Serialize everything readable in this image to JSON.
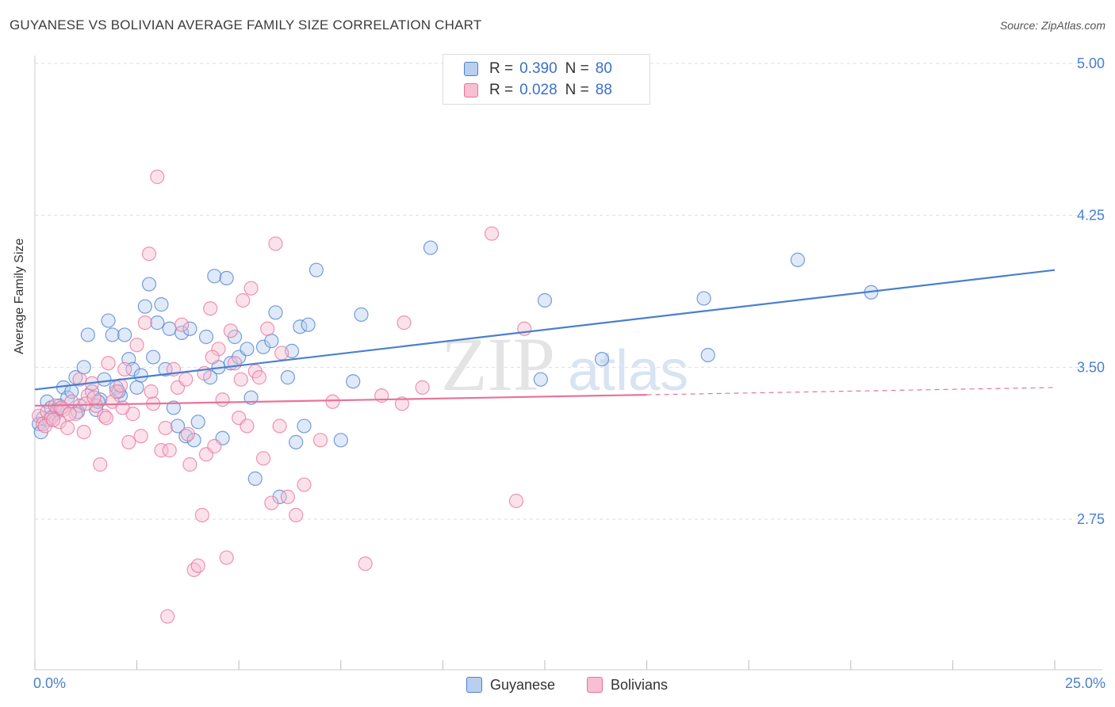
{
  "title": "GUYANESE VS BOLIVIAN AVERAGE FAMILY SIZE CORRELATION CHART",
  "source": "Source: ZipAtlas.com",
  "watermark": {
    "zip": "ZIP",
    "atlas": "atlas"
  },
  "colors": {
    "blue": "#4a7fd0",
    "blue_fill": "#b9cff0",
    "pink": "#e8739b",
    "pink_fill": "#f7bfd1",
    "grid": "#dddddd"
  },
  "legend": {
    "guyanese": {
      "r_label": "R = ",
      "r_value": "0.390",
      "n_label": "N = ",
      "n_value": "80"
    },
    "bolivians": {
      "r_label": "R = ",
      "r_value": "0.028",
      "n_label": "N = ",
      "n_value": "88"
    }
  },
  "bottom_legend": {
    "guyanese": "Guyanese",
    "bolivians": "Bolivians"
  },
  "chart_data": {
    "type": "scatter",
    "title": "GUYANESE VS BOLIVIAN AVERAGE FAMILY SIZE CORRELATION CHART",
    "xlabel": "",
    "ylabel": "Average Family Size",
    "xlim": [
      0,
      25
    ],
    "ylim": [
      2.0,
      5.15
    ],
    "x_tick_labels": [
      "0.0%",
      "25.0%"
    ],
    "y_ticks": [
      5.0,
      4.25,
      3.5,
      2.75
    ],
    "y_tick_labels": [
      "5.00",
      "4.25",
      "3.50",
      "2.75"
    ],
    "series": [
      {
        "name": "Guyanese",
        "r": 0.39,
        "n": 80,
        "trend": {
          "x": [
            0,
            25
          ],
          "y": [
            3.39,
            3.98
          ],
          "solid_to": 25
        },
        "points": [
          [
            0.1,
            3.22
          ],
          [
            0.2,
            3.25
          ],
          [
            0.3,
            3.33
          ],
          [
            0.4,
            3.3
          ],
          [
            0.5,
            3.27
          ],
          [
            0.6,
            3.31
          ],
          [
            0.7,
            3.4
          ],
          [
            0.8,
            3.35
          ],
          [
            0.9,
            3.38
          ],
          [
            1.0,
            3.45
          ],
          [
            1.1,
            3.31
          ],
          [
            1.2,
            3.5
          ],
          [
            1.3,
            3.66
          ],
          [
            1.4,
            3.38
          ],
          [
            1.5,
            3.29
          ],
          [
            1.6,
            3.34
          ],
          [
            1.7,
            3.44
          ],
          [
            1.8,
            3.73
          ],
          [
            1.9,
            3.66
          ],
          [
            2.0,
            3.4
          ],
          [
            2.1,
            3.36
          ],
          [
            2.2,
            3.66
          ],
          [
            2.3,
            3.54
          ],
          [
            2.4,
            3.49
          ],
          [
            2.5,
            3.4
          ],
          [
            2.6,
            3.46
          ],
          [
            2.7,
            3.8
          ],
          [
            2.8,
            3.91
          ],
          [
            2.9,
            3.55
          ],
          [
            3.0,
            3.72
          ],
          [
            3.1,
            3.81
          ],
          [
            3.2,
            3.49
          ],
          [
            3.3,
            3.69
          ],
          [
            3.4,
            3.3
          ],
          [
            3.5,
            3.21
          ],
          [
            3.6,
            3.67
          ],
          [
            3.7,
            3.16
          ],
          [
            3.8,
            3.69
          ],
          [
            3.9,
            3.14
          ],
          [
            4.0,
            3.23
          ],
          [
            4.2,
            3.65
          ],
          [
            4.3,
            3.45
          ],
          [
            4.4,
            3.95
          ],
          [
            4.5,
            3.5
          ],
          [
            4.6,
            3.15
          ],
          [
            4.7,
            3.94
          ],
          [
            4.8,
            3.52
          ],
          [
            4.9,
            3.65
          ],
          [
            5.0,
            3.55
          ],
          [
            5.2,
            3.59
          ],
          [
            5.3,
            3.35
          ],
          [
            5.4,
            2.95
          ],
          [
            5.6,
            3.6
          ],
          [
            5.8,
            3.63
          ],
          [
            5.9,
            3.77
          ],
          [
            6.0,
            2.86
          ],
          [
            6.2,
            3.45
          ],
          [
            6.3,
            3.58
          ],
          [
            6.4,
            3.13
          ],
          [
            6.5,
            3.7
          ],
          [
            6.6,
            3.21
          ],
          [
            6.7,
            3.71
          ],
          [
            6.9,
            3.98
          ],
          [
            7.5,
            3.14
          ],
          [
            7.8,
            3.43
          ],
          [
            8.0,
            3.76
          ],
          [
            9.7,
            4.09
          ],
          [
            12.4,
            3.44
          ],
          [
            12.5,
            3.83
          ],
          [
            13.9,
            3.54
          ],
          [
            16.4,
            3.84
          ],
          [
            16.5,
            3.56
          ],
          [
            18.7,
            4.03
          ],
          [
            20.5,
            3.87
          ],
          [
            0.15,
            3.18
          ],
          [
            0.35,
            3.24
          ],
          [
            0.55,
            3.29
          ],
          [
            1.05,
            3.28
          ],
          [
            1.55,
            3.33
          ],
          [
            2.05,
            3.38
          ]
        ]
      },
      {
        "name": "Bolivians",
        "r": 0.028,
        "n": 88,
        "trend": {
          "x": [
            0,
            25
          ],
          "y": [
            3.31,
            3.4
          ],
          "solid_to": 15
        },
        "points": [
          [
            0.1,
            3.26
          ],
          [
            0.2,
            3.22
          ],
          [
            0.3,
            3.28
          ],
          [
            0.4,
            3.25
          ],
          [
            0.5,
            3.31
          ],
          [
            0.6,
            3.23
          ],
          [
            0.7,
            3.29
          ],
          [
            0.8,
            3.2
          ],
          [
            0.9,
            3.33
          ],
          [
            1.0,
            3.27
          ],
          [
            1.1,
            3.44
          ],
          [
            1.2,
            3.18
          ],
          [
            1.3,
            3.36
          ],
          [
            1.4,
            3.42
          ],
          [
            1.5,
            3.31
          ],
          [
            1.6,
            3.02
          ],
          [
            1.7,
            3.26
          ],
          [
            1.8,
            3.52
          ],
          [
            1.9,
            3.33
          ],
          [
            2.0,
            3.38
          ],
          [
            2.1,
            3.41
          ],
          [
            2.2,
            3.49
          ],
          [
            2.3,
            3.13
          ],
          [
            2.4,
            3.27
          ],
          [
            2.5,
            3.61
          ],
          [
            2.6,
            3.16
          ],
          [
            2.7,
            3.72
          ],
          [
            2.8,
            4.06
          ],
          [
            2.9,
            3.32
          ],
          [
            3.0,
            4.44
          ],
          [
            3.1,
            3.09
          ],
          [
            3.2,
            3.2
          ],
          [
            3.3,
            3.09
          ],
          [
            3.4,
            3.49
          ],
          [
            3.5,
            3.4
          ],
          [
            3.6,
            3.71
          ],
          [
            3.7,
            3.44
          ],
          [
            3.8,
            3.02
          ],
          [
            3.9,
            2.5
          ],
          [
            4.0,
            2.52
          ],
          [
            4.1,
            2.77
          ],
          [
            4.2,
            3.07
          ],
          [
            4.3,
            3.79
          ],
          [
            4.4,
            3.11
          ],
          [
            4.5,
            3.59
          ],
          [
            4.6,
            3.34
          ],
          [
            4.7,
            2.56
          ],
          [
            4.8,
            3.68
          ],
          [
            4.9,
            3.52
          ],
          [
            5.0,
            3.25
          ],
          [
            5.1,
            3.83
          ],
          [
            5.2,
            3.21
          ],
          [
            5.3,
            3.89
          ],
          [
            5.4,
            3.48
          ],
          [
            5.5,
            3.45
          ],
          [
            5.6,
            3.05
          ],
          [
            5.7,
            3.69
          ],
          [
            5.8,
            2.83
          ],
          [
            5.9,
            4.11
          ],
          [
            6.0,
            3.21
          ],
          [
            6.2,
            2.86
          ],
          [
            6.4,
            2.77
          ],
          [
            6.6,
            2.92
          ],
          [
            7.0,
            3.14
          ],
          [
            7.3,
            3.33
          ],
          [
            8.1,
            2.53
          ],
          [
            8.5,
            3.36
          ],
          [
            9.0,
            3.32
          ],
          [
            9.5,
            3.4
          ],
          [
            11.2,
            4.16
          ],
          [
            11.8,
            2.84
          ],
          [
            12.0,
            3.69
          ],
          [
            0.25,
            3.21
          ],
          [
            0.45,
            3.24
          ],
          [
            0.65,
            3.3
          ],
          [
            0.85,
            3.27
          ],
          [
            1.25,
            3.32
          ],
          [
            1.45,
            3.35
          ],
          [
            1.75,
            3.25
          ],
          [
            2.15,
            3.3
          ],
          [
            3.25,
            2.27
          ],
          [
            4.15,
            3.47
          ],
          [
            5.05,
            3.44
          ],
          [
            6.05,
            3.57
          ],
          [
            9.05,
            3.72
          ],
          [
            4.35,
            3.55
          ],
          [
            2.85,
            3.38
          ],
          [
            3.75,
            3.17
          ]
        ]
      }
    ]
  }
}
